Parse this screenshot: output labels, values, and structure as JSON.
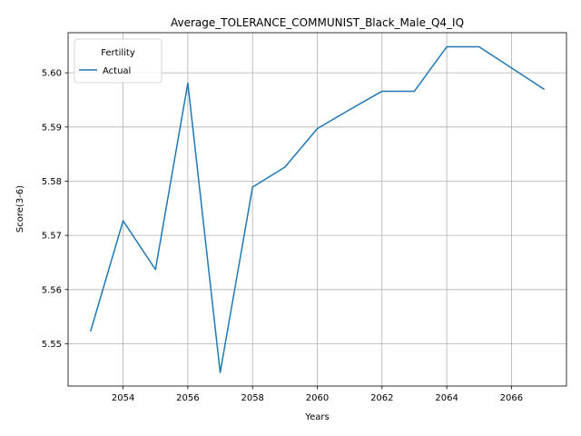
{
  "chart_data": {
    "type": "line",
    "title": "Average_TOLERANCE_COMMUNIST_Black_Male_Q4_IQ",
    "xlabel": "Years",
    "ylabel": "Score(3-6)",
    "xlim": [
      2052.3,
      2067.7
    ],
    "ylim": [
      5.5422,
      5.6074
    ],
    "xticks": [
      2054,
      2056,
      2058,
      2060,
      2062,
      2064,
      2066
    ],
    "yticks": [
      5.55,
      5.56,
      5.57,
      5.58,
      5.59,
      5.6
    ],
    "grid": true,
    "legend": {
      "title": "Fertility",
      "placement": "top-left"
    },
    "series": [
      {
        "name": "Actual",
        "color": "#1f77b4",
        "x": [
          2053,
          2054,
          2055,
          2056,
          2057,
          2058,
          2059,
          2060,
          2061,
          2062,
          2063,
          2064,
          2065,
          2066,
          2067
        ],
        "y": [
          5.5524,
          5.5727,
          5.5637,
          5.5981,
          5.5447,
          5.5789,
          5.5826,
          5.5897,
          5.5932,
          5.5966,
          5.5966,
          5.6048,
          5.6048,
          5.6009,
          5.597
        ]
      }
    ]
  }
}
